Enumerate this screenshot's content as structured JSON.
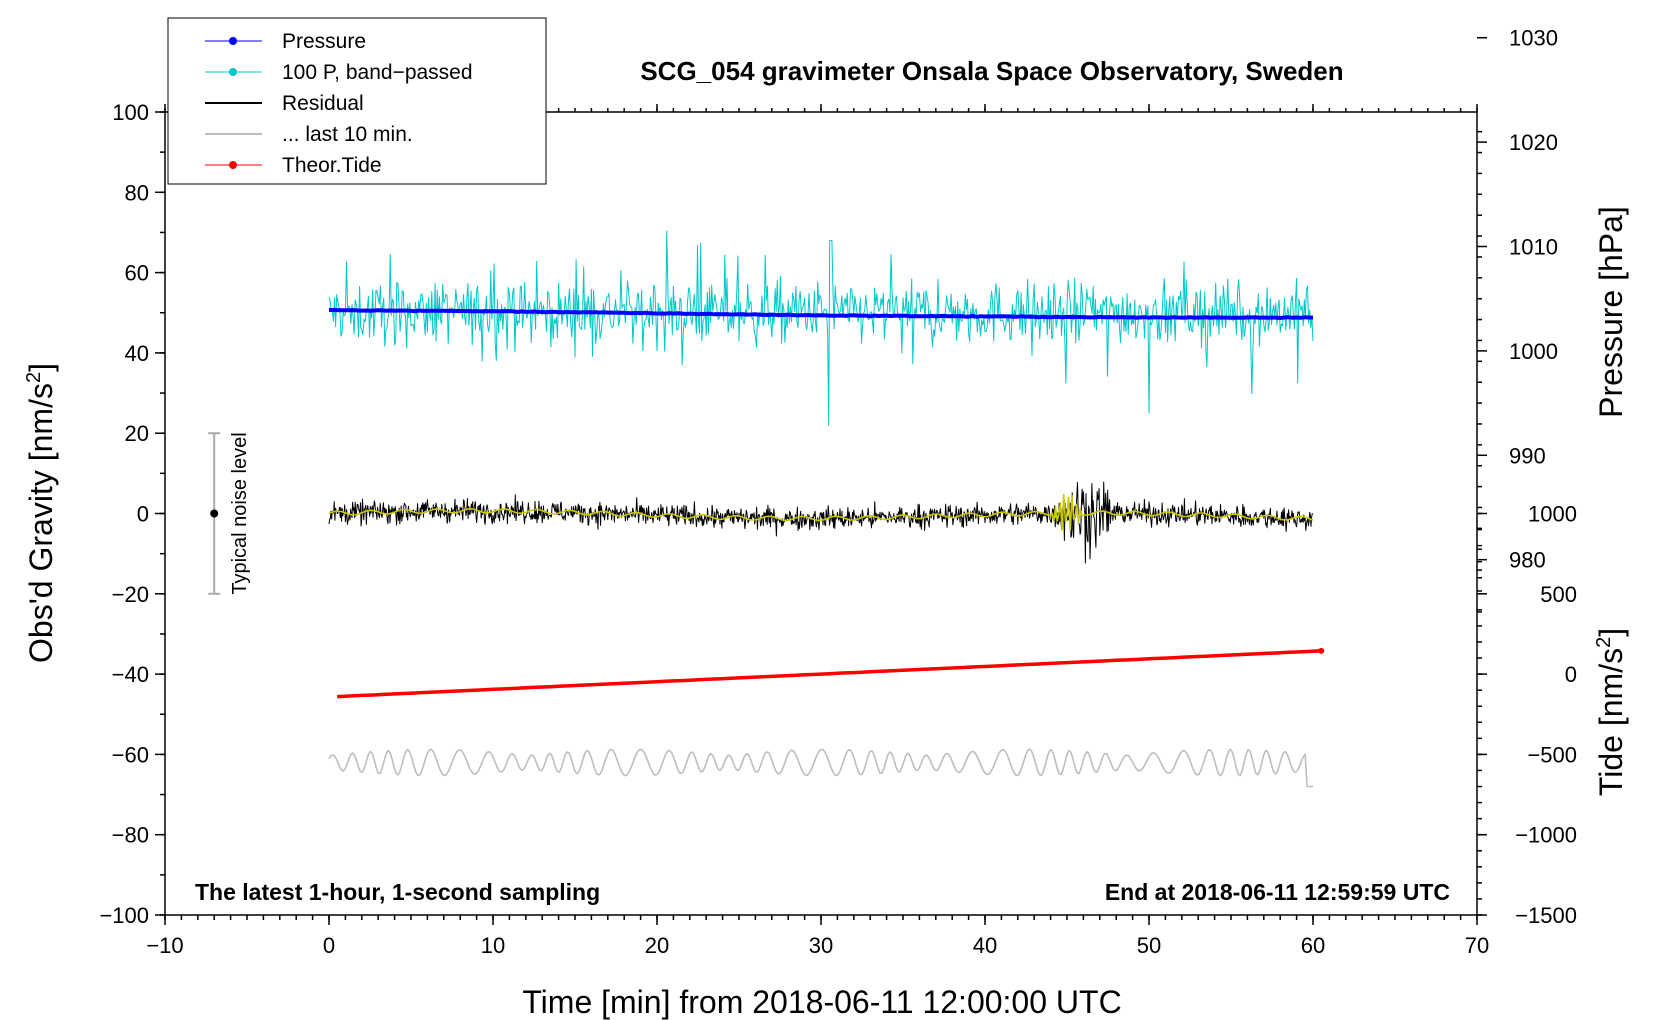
{
  "chart_data": {
    "type": "line",
    "title": "SCG_054 gravimeter Onsala Space Observatory, Sweden",
    "footer_left": "The latest 1-hour, 1-second sampling",
    "footer_right": "End at 2018-06-11 12:59:59 UTC",
    "xlabel": "Time [min] from 2018-06-11 12:00:00 UTC",
    "xlim": [
      -10,
      70
    ],
    "xticks": [
      -10,
      0,
      10,
      20,
      30,
      40,
      50,
      60,
      70
    ],
    "xtick_labels": [
      "−10",
      "0",
      "10",
      "20",
      "30",
      "40",
      "50",
      "60",
      "70"
    ],
    "ylabel_main": "Obs'd Gravity [nm/s",
    "ylabel_sup": "2",
    "ylabel_close": "]",
    "ylim": [
      -100,
      100
    ],
    "yticks": [
      -100,
      -80,
      -60,
      -40,
      -20,
      0,
      20,
      40,
      60,
      80,
      100
    ],
    "ytick_labels": [
      "−100",
      "−80",
      "−60",
      "−40",
      "−20",
      "0",
      "20",
      "40",
      "60",
      "80",
      "100"
    ],
    "pressure_axis": {
      "label": "Pressure [hPa]",
      "ticks": [
        980,
        990,
        1000,
        1010,
        1020,
        1030
      ],
      "tick_labels": [
        "980",
        "990",
        "1000",
        "1010",
        "1020",
        "1030"
      ],
      "gravity_per_hpa": 2.6,
      "gravity_at_1000": 40.5
    },
    "tide_axis": {
      "label_main": "Tide [nm/s",
      "label_sup": "2",
      "label_close": "]",
      "ticks": [
        -1500,
        -1000,
        -500,
        0,
        500,
        1000
      ],
      "tick_labels": [
        "−1500",
        "−1000",
        "−500",
        "0",
        "500",
        "1000"
      ],
      "gravity_per_unit": 0.04,
      "gravity_at_0": -40
    },
    "noise_bar": {
      "x": -7,
      "center": 0,
      "low": -20,
      "high": 20,
      "label": "Typical noise level"
    },
    "legend": [
      {
        "label": "Pressure",
        "color": "#0000ff",
        "marker": true
      },
      {
        "label": "100 P, band−passed",
        "color": "#00c8c8",
        "marker": true
      },
      {
        "label": "Residual",
        "color": "#000000",
        "marker": false
      },
      {
        "label": "... last 10 min.",
        "color": "#bebebe",
        "marker": false
      },
      {
        "label": "Theor.Tide",
        "color": "#ff0000",
        "marker": true
      }
    ],
    "series": [
      {
        "name": "Pressure",
        "axis": "pressure",
        "color": "#0000ff",
        "x": [
          0,
          10,
          20,
          30,
          40,
          50,
          60
        ],
        "values": [
          1003.9,
          1003.8,
          1003.6,
          1003.4,
          1003.3,
          1003.2,
          1003.2
        ]
      },
      {
        "name": "100 P, band-passed",
        "axis": "gravity",
        "color": "#00c8c8",
        "x_range": [
          0,
          60
        ],
        "center": 50,
        "amplitude": 6
      },
      {
        "name": "Residual",
        "axis": "gravity",
        "color": "#000000",
        "x_range": [
          0,
          60
        ],
        "center": 0,
        "amplitude": 2.5,
        "quake_window": [
          44,
          49
        ]
      },
      {
        "name": "Residual smoothed",
        "axis": "gravity",
        "color": "#c8c800",
        "x_range": [
          0,
          60
        ],
        "center": 0,
        "amplitude": 1
      },
      {
        "name": "... last 10 min.",
        "axis": "gravity",
        "color": "#bebebe",
        "x_range": [
          0,
          60
        ],
        "center": -62,
        "amplitude": 3
      },
      {
        "name": "Theor.Tide",
        "axis": "tide",
        "color": "#ff0000",
        "x": [
          0.5,
          60.5
        ],
        "values": [
          -140,
          145
        ]
      }
    ]
  },
  "colors": {
    "pressure": "#0000ff",
    "bandpassed": "#00c8c8",
    "residual": "#000000",
    "smoothed": "#c8c800",
    "last10": "#bebebe",
    "tide": "#ff0000",
    "noise_bar": "#aaaaaa"
  }
}
